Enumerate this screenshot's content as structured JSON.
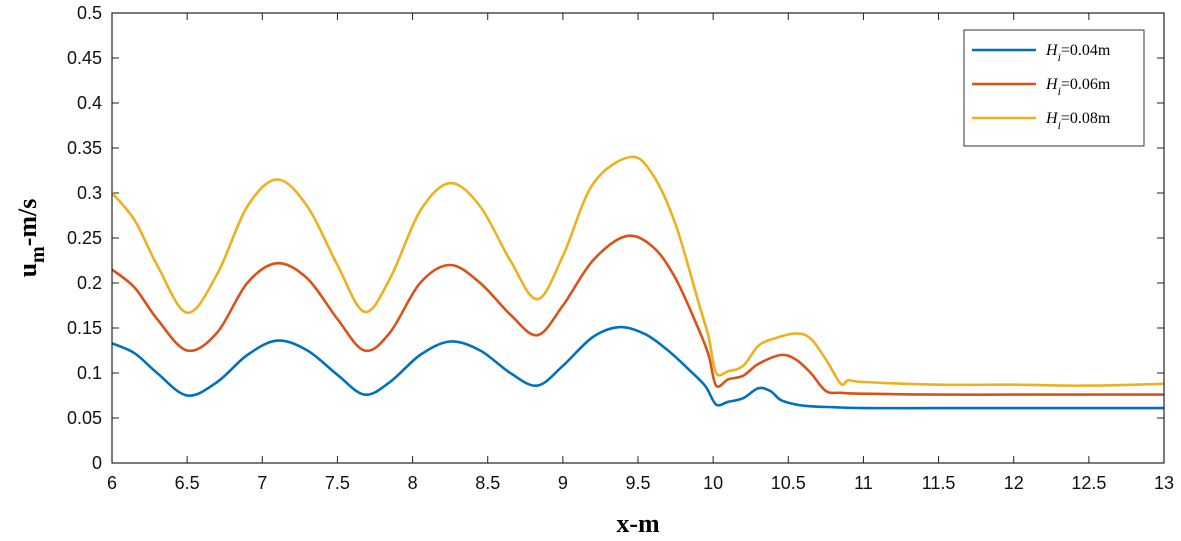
{
  "chart_data": {
    "type": "line",
    "title": "",
    "xlabel": "x-m",
    "ylabel": {
      "main": "u",
      "sub": "m",
      "rest": "-m/s"
    },
    "xlim": [
      6,
      13
    ],
    "ylim": [
      0,
      0.5
    ],
    "xticks": [
      "6",
      "6.5",
      "7",
      "7.5",
      "8",
      "8.5",
      "9",
      "9.5",
      "10",
      "10.5",
      "11",
      "11.5",
      "12",
      "12.5",
      "13"
    ],
    "yticks": [
      "0",
      "0.05",
      "0.1",
      "0.15",
      "0.2",
      "0.25",
      "0.3",
      "0.35",
      "0.4",
      "0.45",
      "0.5"
    ],
    "legend_position": "top-right",
    "grid": false,
    "series": [
      {
        "name": "H_i=0.04m",
        "legend": {
          "main": "H",
          "sub": "i",
          "rest": "=0.04m"
        },
        "color": "#0072BD",
        "x": [
          6,
          6.15,
          6.3,
          6.5,
          6.7,
          6.9,
          7.1,
          7.3,
          7.5,
          7.68,
          7.85,
          8.05,
          8.25,
          8.45,
          8.65,
          8.83,
          9.0,
          9.2,
          9.38,
          9.55,
          9.7,
          9.85,
          9.95,
          10.02,
          10.1,
          10.2,
          10.3,
          10.38,
          10.45,
          10.55,
          10.65,
          10.8,
          11.0,
          11.5,
          12.0,
          12.5,
          13.0
        ],
        "y": [
          0.133,
          0.122,
          0.1,
          0.075,
          0.09,
          0.12,
          0.136,
          0.125,
          0.098,
          0.076,
          0.09,
          0.12,
          0.135,
          0.125,
          0.1,
          0.086,
          0.108,
          0.14,
          0.151,
          0.143,
          0.125,
          0.102,
          0.085,
          0.065,
          0.068,
          0.072,
          0.083,
          0.08,
          0.07,
          0.065,
          0.063,
          0.062,
          0.061,
          0.061,
          0.061,
          0.061,
          0.061
        ]
      },
      {
        "name": "H_i=0.06m",
        "legend": {
          "main": "H",
          "sub": "i",
          "rest": "=0.06m"
        },
        "color": "#D95319",
        "x": [
          6,
          6.15,
          6.3,
          6.5,
          6.7,
          6.9,
          7.1,
          7.3,
          7.5,
          7.68,
          7.85,
          8.05,
          8.25,
          8.45,
          8.65,
          8.83,
          9.0,
          9.2,
          9.42,
          9.6,
          9.75,
          9.9,
          9.97,
          10.02,
          10.1,
          10.2,
          10.3,
          10.45,
          10.55,
          10.65,
          10.75,
          10.85,
          11.0,
          11.5,
          12.0,
          12.5,
          13.0
        ],
        "y": [
          0.215,
          0.195,
          0.16,
          0.125,
          0.145,
          0.2,
          0.222,
          0.205,
          0.16,
          0.125,
          0.145,
          0.2,
          0.22,
          0.2,
          0.165,
          0.142,
          0.175,
          0.225,
          0.252,
          0.24,
          0.205,
          0.15,
          0.12,
          0.086,
          0.093,
          0.097,
          0.11,
          0.12,
          0.115,
          0.1,
          0.08,
          0.078,
          0.077,
          0.076,
          0.076,
          0.076,
          0.076
        ]
      },
      {
        "name": "H_i=0.08m",
        "legend": {
          "main": "H",
          "sub": "i",
          "rest": "=0.08m"
        },
        "color": "#EDB120",
        "x": [
          6,
          6.15,
          6.3,
          6.5,
          6.7,
          6.9,
          7.1,
          7.3,
          7.5,
          7.68,
          7.85,
          8.05,
          8.25,
          8.45,
          8.65,
          8.83,
          9.0,
          9.2,
          9.45,
          9.6,
          9.75,
          9.9,
          9.97,
          10.02,
          10.1,
          10.2,
          10.3,
          10.4,
          10.55,
          10.65,
          10.75,
          10.85,
          10.9,
          11.0,
          11.5,
          12.0,
          12.5,
          13.0
        ],
        "y": [
          0.3,
          0.27,
          0.22,
          0.167,
          0.21,
          0.285,
          0.315,
          0.285,
          0.22,
          0.168,
          0.205,
          0.28,
          0.311,
          0.285,
          0.225,
          0.182,
          0.23,
          0.31,
          0.34,
          0.32,
          0.265,
          0.18,
          0.14,
          0.1,
          0.102,
          0.108,
          0.13,
          0.138,
          0.144,
          0.138,
          0.115,
          0.088,
          0.092,
          0.09,
          0.087,
          0.087,
          0.086,
          0.088
        ]
      }
    ]
  }
}
